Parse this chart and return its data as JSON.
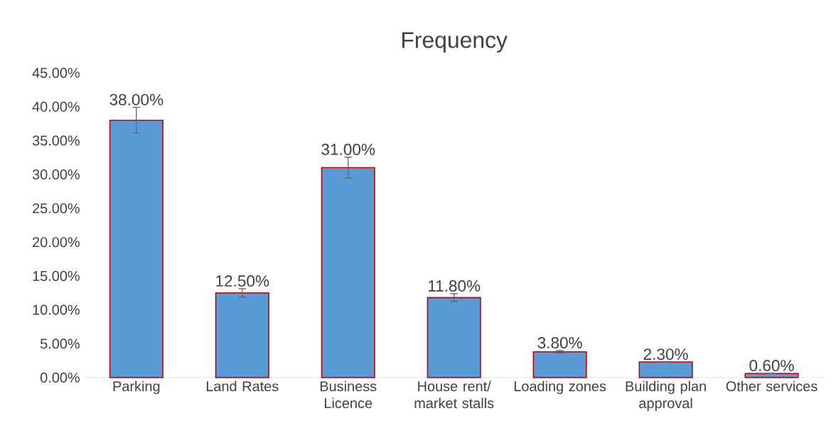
{
  "chart_data": {
    "type": "bar",
    "title": "Frequency",
    "categories": [
      "Parking",
      "Land Rates",
      "Business Licence",
      "House rent/ market stalls",
      "Loading zones",
      "Building plan approval",
      "Other services"
    ],
    "values": [
      38,
      12.5,
      31,
      11.8,
      3.8,
      2.3,
      0.6
    ],
    "errors": [
      1.9,
      0.625,
      1.55,
      0.59,
      0.19,
      null,
      0.03
    ],
    "value_labels": [
      "38.00%",
      "12.50%",
      "31.00%",
      "11.80%",
      "3.80%",
      "2.30%",
      "0.60%"
    ],
    "color": "#5b9bd5",
    "ylim": [
      0,
      45
    ],
    "yticks": [
      {
        "value": 0,
        "label": "0.00%"
      },
      {
        "value": 5,
        "label": "5.00%"
      },
      {
        "value": 10,
        "label": "10.00%"
      },
      {
        "value": 15,
        "label": "15.00%"
      },
      {
        "value": 20,
        "label": "20.00%"
      },
      {
        "value": 25,
        "label": "25.00%"
      },
      {
        "value": 30,
        "label": "30.00%"
      },
      {
        "value": 35,
        "label": "35.00%"
      },
      {
        "value": 40,
        "label": "40.00%"
      },
      {
        "value": 45,
        "label": "45.00%"
      }
    ],
    "grid": false
  }
}
